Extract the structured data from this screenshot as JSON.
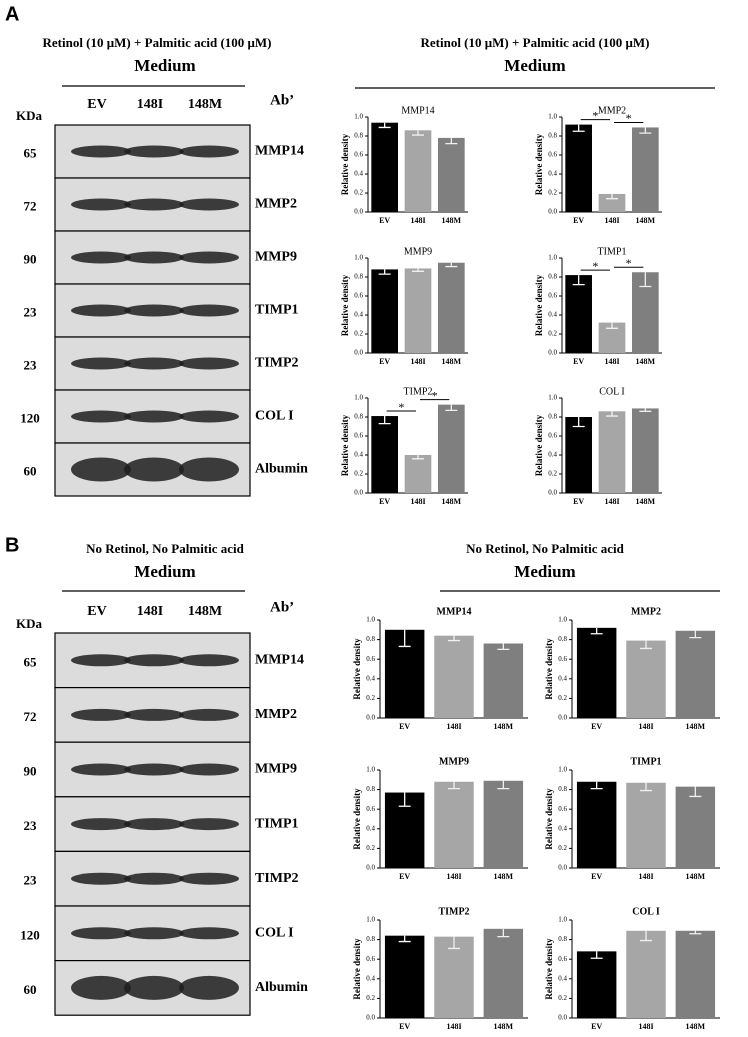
{
  "panels": [
    {
      "label": "A",
      "blot": {
        "condition": "Retinol (10 μM) + Palmitic acid (100 μM)",
        "medium": "Medium",
        "kda_header": "KDa",
        "ab_header": "Ab’",
        "lanes": [
          "EV",
          "148I",
          "148M"
        ],
        "rows": [
          {
            "kda": 65,
            "ab": "MMP14"
          },
          {
            "kda": 72,
            "ab": "MMP2"
          },
          {
            "kda": 90,
            "ab": "MMP9"
          },
          {
            "kda": 23,
            "ab": "TIMP1"
          },
          {
            "kda": 23,
            "ab": "TIMP2"
          },
          {
            "kda": 120,
            "ab": "COL I"
          },
          {
            "kda": 60,
            "ab": "Albumin"
          }
        ]
      },
      "charts_header": {
        "condition": "Retinol (10 μM) + Palmitic acid (100 μM)",
        "medium": "Medium"
      }
    },
    {
      "label": "B",
      "blot": {
        "condition": "No Retinol, No Palmitic acid",
        "medium": "Medium",
        "kda_header": "KDa",
        "ab_header": "Ab’",
        "lanes": [
          "EV",
          "148I",
          "148M"
        ],
        "rows": [
          {
            "kda": 65,
            "ab": "MMP14"
          },
          {
            "kda": 72,
            "ab": "MMP2"
          },
          {
            "kda": 90,
            "ab": "MMP9"
          },
          {
            "kda": 23,
            "ab": "TIMP1"
          },
          {
            "kda": 23,
            "ab": "TIMP2"
          },
          {
            "kda": 120,
            "ab": "COL I"
          },
          {
            "kda": 60,
            "ab": "Albumin"
          }
        ]
      },
      "charts_header": {
        "condition": "No Retinol, No Palmitic acid",
        "medium": "Medium"
      }
    }
  ],
  "chart_data": [
    {
      "type": "bar",
      "title": "MMP14",
      "ylabel": "Relative density",
      "categories": [
        "EV",
        "148I",
        "148M"
      ],
      "values": [
        0.94,
        0.86,
        0.78
      ],
      "errors": [
        0.05,
        0.05,
        0.06
      ],
      "colors": [
        "#000000",
        "#a6a6a6",
        "#7f7f7f"
      ],
      "ylim": [
        0,
        1
      ],
      "yticks": [
        {
          "value": 0,
          "label": "0.0"
        },
        0.2,
        0.4,
        0.6,
        0.8,
        {
          "value": 1,
          "label": "1.0"
        }
      ],
      "significance": []
    },
    {
      "type": "bar",
      "title": "MMP2",
      "ylabel": "Relative density",
      "categories": [
        "EV",
        "148I",
        "148M"
      ],
      "values": [
        0.92,
        0.19,
        0.89
      ],
      "errors": [
        0.07,
        0.05,
        0.06
      ],
      "colors": [
        "#000000",
        "#a6a6a6",
        "#7f7f7f"
      ],
      "ylim": [
        0,
        1
      ],
      "yticks": [
        {
          "value": 0,
          "label": "0.0"
        },
        0.2,
        0.4,
        0.6,
        0.8,
        {
          "value": 1,
          "label": "1.0"
        }
      ],
      "significance": [
        {
          "between": [
            "EV",
            "148I"
          ],
          "label": "*"
        },
        {
          "between": [
            "148I",
            "148M"
          ],
          "label": "*"
        }
      ]
    },
    {
      "type": "bar",
      "title": "MMP9",
      "ylabel": "Relative density",
      "categories": [
        "EV",
        "148I",
        "148M"
      ],
      "values": [
        0.88,
        0.89,
        0.95
      ],
      "errors": [
        0.05,
        0.03,
        0.04
      ],
      "colors": [
        "#000000",
        "#a6a6a6",
        "#7f7f7f"
      ],
      "ylim": [
        0,
        1
      ],
      "yticks": [
        {
          "value": 0,
          "label": "0.0"
        },
        0.2,
        0.4,
        0.6,
        0.8,
        {
          "value": 1,
          "label": "1.0"
        }
      ],
      "significance": []
    },
    {
      "type": "bar",
      "title": "TIMP1",
      "ylabel": "Relative density",
      "categories": [
        "EV",
        "148I",
        "148M"
      ],
      "values": [
        0.82,
        0.32,
        0.85
      ],
      "errors": [
        0.1,
        0.06,
        0.15
      ],
      "colors": [
        "#000000",
        "#a6a6a6",
        "#7f7f7f"
      ],
      "ylim": [
        0,
        1
      ],
      "yticks": [
        {
          "value": 0,
          "label": "0.0"
        },
        0.2,
        0.4,
        0.6,
        0.8,
        {
          "value": 1,
          "label": "1.0"
        }
      ],
      "significance": [
        {
          "between": [
            "EV",
            "148I"
          ],
          "label": "*"
        },
        {
          "between": [
            "148I",
            "148M"
          ],
          "label": "*"
        }
      ]
    },
    {
      "type": "bar",
      "title": "TIMP2",
      "ylabel": "Relative density",
      "categories": [
        "EV",
        "148I",
        "148M"
      ],
      "values": [
        0.81,
        0.4,
        0.93
      ],
      "errors": [
        0.08,
        0.04,
        0.06
      ],
      "colors": [
        "#000000",
        "#a6a6a6",
        "#7f7f7f"
      ],
      "ylim": [
        0,
        1
      ],
      "yticks": [
        {
          "value": 0,
          "label": "0.0"
        },
        0.2,
        0.4,
        0.6,
        0.8,
        {
          "value": 1,
          "label": "1.0"
        }
      ],
      "significance": [
        {
          "between": [
            "EV",
            "148I"
          ],
          "label": "*"
        },
        {
          "between": [
            "148I",
            "148M"
          ],
          "label": "*"
        }
      ]
    },
    {
      "type": "bar",
      "title": "COL I",
      "ylabel": "Relative density",
      "categories": [
        "EV",
        "148I",
        "148M"
      ],
      "values": [
        0.8,
        0.86,
        0.89
      ],
      "errors": [
        0.1,
        0.05,
        0.03
      ],
      "colors": [
        "#000000",
        "#a6a6a6",
        "#7f7f7f"
      ],
      "ylim": [
        0,
        1
      ],
      "yticks": [
        {
          "value": 0,
          "label": "0.0"
        },
        0.2,
        0.4,
        0.6,
        0.8,
        {
          "value": 1,
          "label": "1.0"
        }
      ],
      "significance": []
    },
    {
      "type": "bar",
      "title": "MMP14",
      "ylabel": "Relative density",
      "categories": [
        "EV",
        "148I",
        "148M"
      ],
      "values": [
        0.9,
        0.84,
        0.76
      ],
      "errors": [
        0.17,
        0.05,
        0.06
      ],
      "colors": [
        "#000000",
        "#a6a6a6",
        "#7f7f7f"
      ],
      "ylim": [
        0,
        1
      ],
      "yticks": [
        {
          "value": 0,
          "label": "0.0"
        },
        0.2,
        0.4,
        0.6,
        0.8,
        {
          "value": 1,
          "label": "1.0"
        }
      ],
      "significance": []
    },
    {
      "type": "bar",
      "title": "MMP2",
      "ylabel": "Relative density",
      "categories": [
        "EV",
        "148I",
        "148M"
      ],
      "values": [
        0.92,
        0.79,
        0.89
      ],
      "errors": [
        0.06,
        0.08,
        0.07
      ],
      "colors": [
        "#000000",
        "#a6a6a6",
        "#7f7f7f"
      ],
      "ylim": [
        0,
        1
      ],
      "yticks": [
        {
          "value": 0,
          "label": "0.0"
        },
        0.2,
        0.4,
        0.6,
        0.8,
        {
          "value": 1,
          "label": "1.0"
        }
      ],
      "significance": []
    },
    {
      "type": "bar",
      "title": "MMP9",
      "ylabel": "Relative density",
      "categories": [
        "EV",
        "148I",
        "148M"
      ],
      "values": [
        0.77,
        0.88,
        0.89
      ],
      "errors": [
        0.14,
        0.07,
        0.08
      ],
      "colors": [
        "#000000",
        "#a6a6a6",
        "#7f7f7f"
      ],
      "ylim": [
        0,
        1
      ],
      "yticks": [
        {
          "value": 0,
          "label": "0.0"
        },
        0.2,
        0.4,
        0.6,
        0.8,
        {
          "value": 1,
          "label": "1.0"
        }
      ],
      "significance": []
    },
    {
      "type": "bar",
      "title": "TIMP1",
      "ylabel": "Relative density",
      "categories": [
        "EV",
        "148I",
        "148M"
      ],
      "values": [
        0.88,
        0.87,
        0.83
      ],
      "errors": [
        0.07,
        0.08,
        0.1
      ],
      "colors": [
        "#000000",
        "#a6a6a6",
        "#7f7f7f"
      ],
      "ylim": [
        0,
        1
      ],
      "yticks": [
        {
          "value": 0,
          "label": "0.0"
        },
        0.2,
        0.4,
        0.6,
        0.8,
        {
          "value": 1,
          "label": "1.0"
        }
      ],
      "significance": []
    },
    {
      "type": "bar",
      "title": "TIMP2",
      "ylabel": "Relative density",
      "categories": [
        "EV",
        "148I",
        "148M"
      ],
      "values": [
        0.84,
        0.83,
        0.91
      ],
      "errors": [
        0.06,
        0.12,
        0.08
      ],
      "colors": [
        "#000000",
        "#a6a6a6",
        "#7f7f7f"
      ],
      "ylim": [
        0,
        1
      ],
      "yticks": [
        {
          "value": 0,
          "label": "0.0"
        },
        0.2,
        0.4,
        0.6,
        0.8,
        {
          "value": 1,
          "label": "1.0"
        }
      ],
      "significance": []
    },
    {
      "type": "bar",
      "title": "COL I",
      "ylabel": "Relative density",
      "categories": [
        "EV",
        "148I",
        "148M"
      ],
      "values": [
        0.68,
        0.89,
        0.89
      ],
      "errors": [
        0.07,
        0.1,
        0.03
      ],
      "colors": [
        "#000000",
        "#a6a6a6",
        "#7f7f7f"
      ],
      "ylim": [
        0,
        1
      ],
      "yticks": [
        {
          "value": 0,
          "label": "0.0"
        },
        0.2,
        0.4,
        0.6,
        0.8,
        {
          "value": 1,
          "label": "1.0"
        }
      ],
      "significance": []
    }
  ]
}
